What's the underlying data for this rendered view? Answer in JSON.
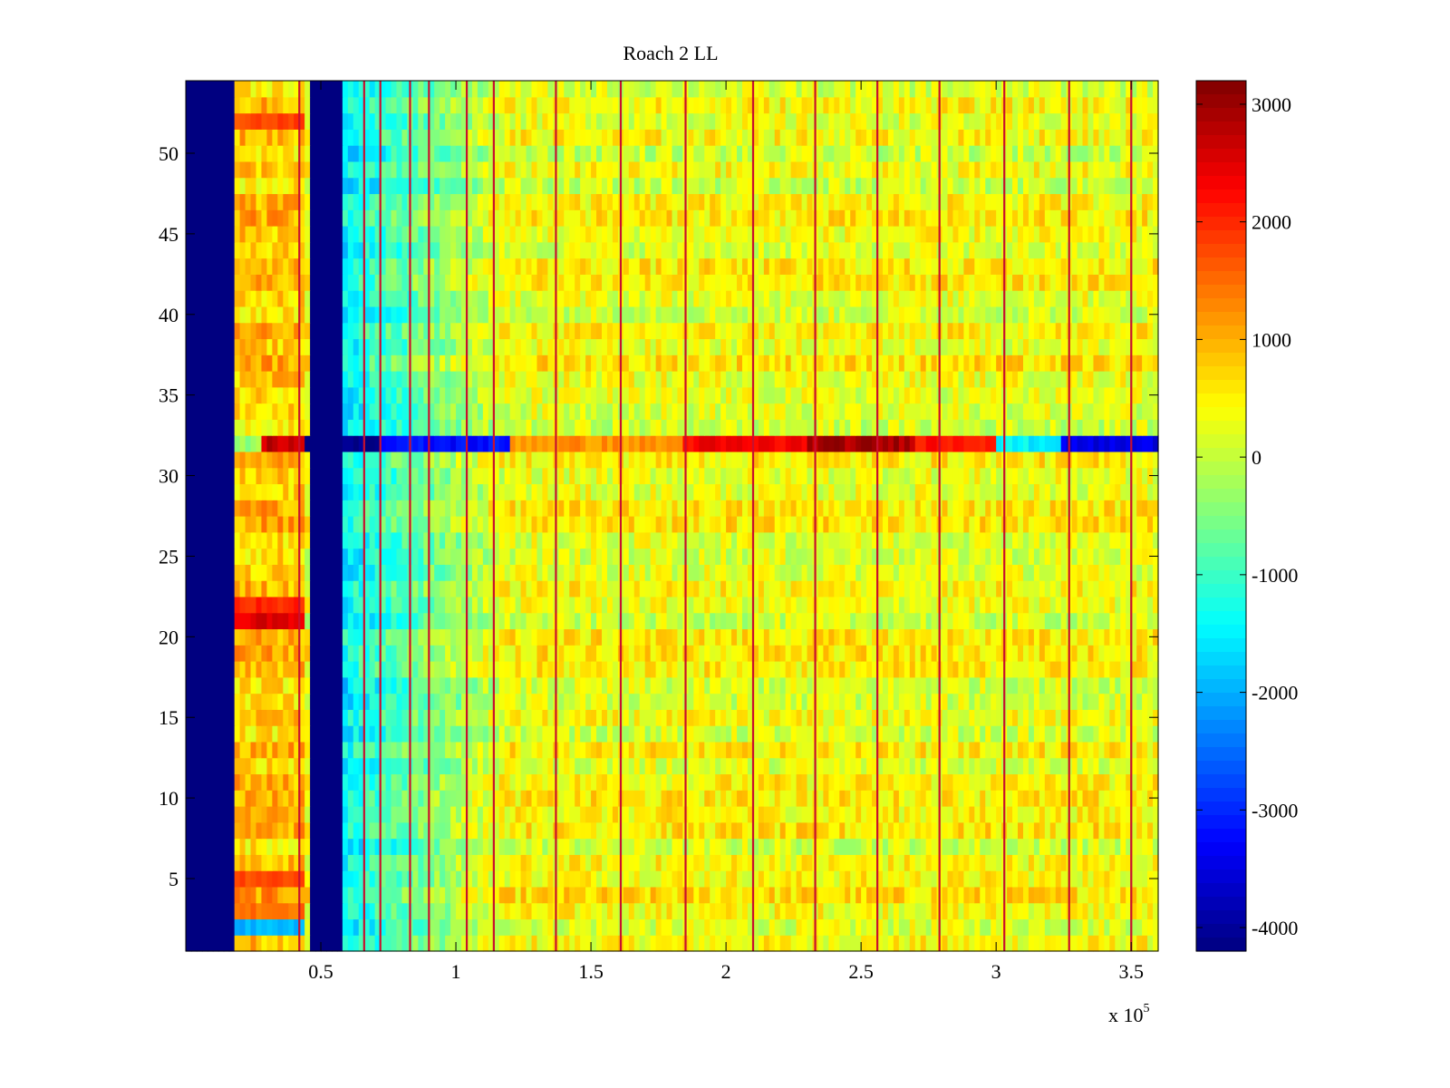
{
  "chart_data": {
    "type": "heatmap",
    "title": "Roach 2 LL",
    "xlabel": "",
    "ylabel": "",
    "x_exponent_label": {
      "base": "x 10",
      "exponent": "5"
    },
    "x_multiplier": 100000,
    "xlim": [
      0,
      3.6
    ],
    "ylim": [
      0.5,
      54.5
    ],
    "x_ticks": [
      0.5,
      1,
      1.5,
      2,
      2.5,
      3,
      3.5
    ],
    "x_tick_labels": [
      "0.5",
      "1",
      "1.5",
      "2",
      "2.5",
      "3",
      "3.5"
    ],
    "y_ticks": [
      5,
      10,
      15,
      20,
      25,
      30,
      35,
      40,
      45,
      50
    ],
    "y_tick_labels": [
      "5",
      "10",
      "15",
      "20",
      "25",
      "30",
      "35",
      "40",
      "45",
      "50"
    ],
    "rows": 54,
    "colormap": "jet",
    "colorbar": {
      "clim": [
        -4200,
        3200
      ],
      "ticks": [
        3000,
        2000,
        1000,
        0,
        -1000,
        -2000,
        -3000,
        -4000
      ],
      "tick_labels": [
        "3000",
        "2000",
        "1000",
        "0",
        "-1000",
        "-2000",
        "-3000",
        "-4000"
      ]
    },
    "base_level": 300,
    "features": {
      "low_columns": [
        {
          "x_range": [
            0,
            0.18
          ],
          "value": -4200
        },
        {
          "x_range": [
            0.46,
            0.58
          ],
          "value": -4200
        }
      ],
      "low_edge_gradient": {
        "x_range": [
          0.58,
          1.2
        ],
        "value_start": -1500,
        "value_end": 300
      },
      "high_band": {
        "x_range": [
          0.19,
          0.45
        ],
        "value": 800
      },
      "vertical_lines": [
        0.42,
        0.66,
        0.72,
        0.83,
        0.9,
        1.04,
        1.14,
        1.37,
        1.61,
        1.85,
        2.1,
        2.33,
        2.56,
        2.79,
        3.03,
        3.27,
        3.5
      ],
      "row_32_profile": [
        {
          "x_range": [
            0.18,
            0.28
          ],
          "value": -300
        },
        {
          "x_range": [
            0.28,
            0.45
          ],
          "value": 2700
        },
        {
          "x_range": [
            0.45,
            0.72
          ],
          "value": -4200
        },
        {
          "x_range": [
            0.72,
            1.2
          ],
          "value": -3200
        },
        {
          "x_range": [
            1.2,
            1.85
          ],
          "value": 1200
        },
        {
          "x_range": [
            1.85,
            2.3
          ],
          "value": 2300
        },
        {
          "x_range": [
            2.3,
            2.7
          ],
          "value": 2900
        },
        {
          "x_range": [
            2.7,
            3.0
          ],
          "value": 2200
        },
        {
          "x_range": [
            3.0,
            3.25
          ],
          "value": -1500
        },
        {
          "x_range": [
            3.25,
            3.6
          ],
          "value": -3500
        }
      ],
      "hot_patches": [
        {
          "row": 21,
          "x_range": [
            0.19,
            0.45
          ],
          "value": 2500
        },
        {
          "row": 22,
          "x_range": [
            0.19,
            0.45
          ],
          "value": 2000
        },
        {
          "row": 52,
          "x_range": [
            0.19,
            0.45
          ],
          "value": 1800
        },
        {
          "row": 5,
          "x_range": [
            0.19,
            0.45
          ],
          "value": 1800
        },
        {
          "row": 3,
          "x_range": [
            0.19,
            0.45
          ],
          "value": 1500
        },
        {
          "row": 2,
          "x_range": [
            0.19,
            0.45
          ],
          "value": -2000
        }
      ]
    }
  }
}
